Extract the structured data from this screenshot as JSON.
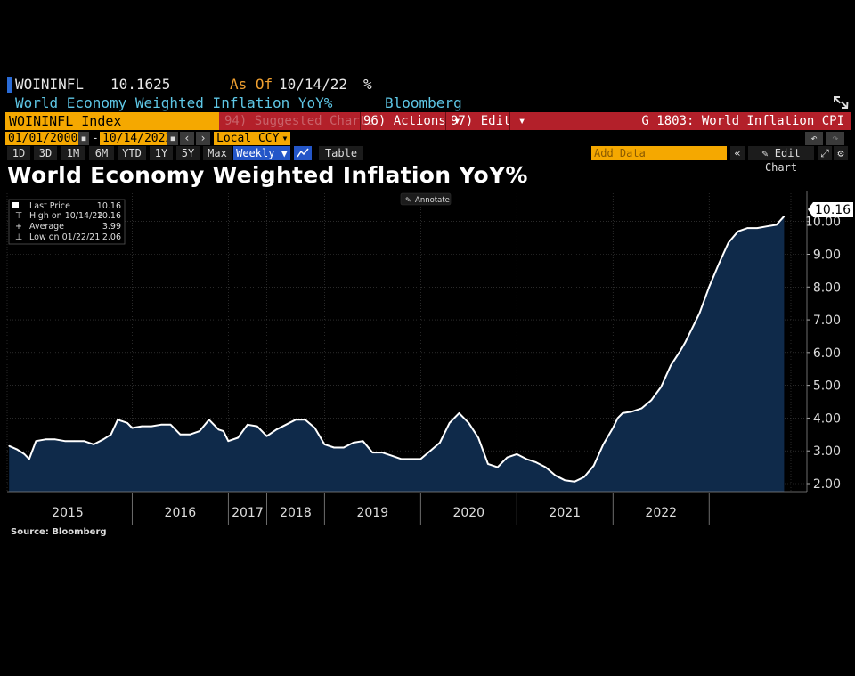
{
  "header": {
    "ticker": "WOININFL",
    "last_value": "10.1625",
    "as_of_label": "As Of",
    "as_of_date": "10/14/22",
    "unit": "%",
    "description": "World Economy Weighted Inflation YoY%",
    "source": "Bloomberg"
  },
  "menu": {
    "index_name": "WOININFL Index",
    "suggested": "94) Suggested Charts",
    "actions": "96) Actions ▾",
    "edit": "97) Edit ▾",
    "chart_code": "G 1803: World Inflation CPI"
  },
  "controls": {
    "start_date": "01/01/2000",
    "dash": "-",
    "end_date": "10/14/2022",
    "currency": "Local CCY",
    "periods": [
      "1D",
      "3D",
      "1M",
      "6M",
      "YTD",
      "1Y",
      "5Y",
      "Max"
    ],
    "frequency": "Weekly ▼",
    "table": "Table",
    "add_data": "Add Data",
    "edit_chart": "Edit Chart"
  },
  "title": "World Economy Weighted Inflation YoY%",
  "annotate": "Annotate",
  "legend": {
    "last_price_label": "Last Price",
    "last_price": "10.16",
    "high_label": "High on 10/14/22",
    "high": "10.16",
    "average_label": "Average",
    "average": "3.99",
    "low_label": "Low on 01/22/21",
    "low": "2.06"
  },
  "last_value_tag": "10.16",
  "footer": {
    "source": "Source: Bloomberg"
  },
  "colors": {
    "line": "#ffffff",
    "area": "#0f2a4a",
    "accent": "#f5a800",
    "menu": "#b3202a"
  },
  "chart_data": {
    "type": "area",
    "title": "World Economy Weighted Inflation YoY%",
    "ylim": [
      2.0,
      10.4
    ],
    "yticks": [
      "2.00",
      "3.00",
      "4.00",
      "5.00",
      "6.00",
      "7.00",
      "8.00",
      "9.00",
      "10.00"
    ],
    "xtick_labels": [
      "2015",
      "2016",
      "2017",
      "2018",
      "2019",
      "2020",
      "2021",
      "2022"
    ],
    "year_bounds": [
      2014.7,
      2016.0,
      2017.0,
      2017.4,
      2018.0,
      2019.0,
      2020.0,
      2021.0,
      2022.0,
      2022.85
    ],
    "x": [
      2014.72,
      2014.8,
      2014.88,
      2014.93,
      2015.0,
      2015.1,
      2015.2,
      2015.3,
      2015.4,
      2015.5,
      2015.6,
      2015.7,
      2015.78,
      2015.85,
      2015.9,
      2015.95,
      2016.0,
      2016.1,
      2016.2,
      2016.3,
      2016.4,
      2016.5,
      2016.6,
      2016.7,
      2016.8,
      2016.9,
      2016.95,
      2017.0,
      2017.1,
      2017.2,
      2017.3,
      2017.4,
      2017.5,
      2017.6,
      2017.7,
      2017.8,
      2017.9,
      2018.0,
      2018.1,
      2018.2,
      2018.3,
      2018.4,
      2018.5,
      2018.6,
      2018.7,
      2018.8,
      2018.9,
      2019.0,
      2019.1,
      2019.2,
      2019.3,
      2019.4,
      2019.5,
      2019.6,
      2019.7,
      2019.8,
      2019.9,
      2020.0,
      2020.1,
      2020.2,
      2020.3,
      2020.4,
      2020.5,
      2020.6,
      2020.7,
      2020.8,
      2020.9,
      2021.0,
      2021.05,
      2021.1,
      2021.2,
      2021.3,
      2021.4,
      2021.5,
      2021.6,
      2021.7,
      2021.75,
      2021.8,
      2021.9,
      2022.0,
      2022.1,
      2022.2,
      2022.3,
      2022.4,
      2022.5,
      2022.6,
      2022.7,
      2022.78
    ],
    "values": [
      3.15,
      3.05,
      2.9,
      2.75,
      3.3,
      3.35,
      3.35,
      3.3,
      3.3,
      3.3,
      3.2,
      3.35,
      3.5,
      3.95,
      3.9,
      3.85,
      3.7,
      3.75,
      3.75,
      3.8,
      3.8,
      3.5,
      3.5,
      3.6,
      3.95,
      3.65,
      3.6,
      3.3,
      3.4,
      3.8,
      3.75,
      3.45,
      3.65,
      3.8,
      3.95,
      3.95,
      3.7,
      3.2,
      3.1,
      3.1,
      3.25,
      3.3,
      2.95,
      2.95,
      2.85,
      2.75,
      2.75,
      2.75,
      3.0,
      3.25,
      3.85,
      4.15,
      3.85,
      3.4,
      2.6,
      2.5,
      2.8,
      2.9,
      2.75,
      2.65,
      2.5,
      2.25,
      2.1,
      2.06,
      2.2,
      2.55,
      3.2,
      3.7,
      4.0,
      4.15,
      4.2,
      4.3,
      4.55,
      4.95,
      5.6,
      6.05,
      6.3,
      6.6,
      7.2,
      8.0,
      8.7,
      9.35,
      9.7,
      9.8,
      9.8,
      9.85,
      9.9,
      10.16
    ]
  }
}
